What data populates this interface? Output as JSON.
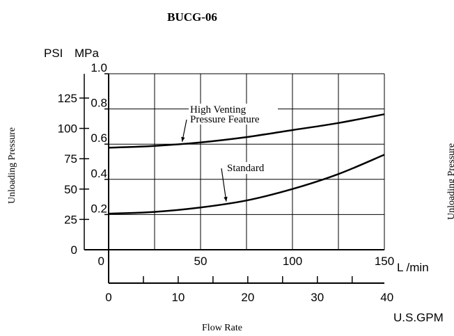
{
  "chart_data": {
    "type": "line",
    "title": "BUCG-06",
    "xlabel": "Flow Rate",
    "ylabel": "Unloading Pressure",
    "y_units": {
      "left": "PSI",
      "right": "MPa"
    },
    "x_units": {
      "primary": "L /min",
      "secondary": "U.S.GPM"
    },
    "xlim": [
      0,
      150
    ],
    "ylim_mpa": [
      0,
      1.0
    ],
    "ylim_psi": [
      0,
      145
    ],
    "x_ticks_lmin": [
      {
        "value": 0,
        "label": "0"
      },
      {
        "value": 50,
        "label": "50"
      },
      {
        "value": 100,
        "label": "100"
      },
      {
        "value": 150,
        "label": "150"
      }
    ],
    "x_ticks_gpm": [
      {
        "value": 0,
        "label": "0"
      },
      {
        "value": 10,
        "label": "10"
      },
      {
        "value": 20,
        "label": "20"
      },
      {
        "value": 30,
        "label": "30"
      },
      {
        "value": 40,
        "label": "40"
      }
    ],
    "gpm_per_lmin": 0.2642,
    "y_ticks_mpa": [
      {
        "value": 0.2,
        "label": "0.2"
      },
      {
        "value": 0.4,
        "label": "0.4"
      },
      {
        "value": 0.6,
        "label": "0.6"
      },
      {
        "value": 0.8,
        "label": "0.8"
      },
      {
        "value": 1.0,
        "label": "1.0"
      }
    ],
    "y_ticks_psi": [
      {
        "value": 0,
        "label": "0"
      },
      {
        "value": 25,
        "label": "25"
      },
      {
        "value": 50,
        "label": "50"
      },
      {
        "value": 75,
        "label": "75"
      },
      {
        "value": 100,
        "label": "100"
      },
      {
        "value": 125,
        "label": "125"
      }
    ],
    "psi_per_mpa": 145.04,
    "grid_x_lmin": [
      0,
      25,
      50,
      75,
      100,
      125,
      150
    ],
    "grid_y_mpa": [
      0.2,
      0.4,
      0.6,
      0.8,
      1.0
    ],
    "series": [
      {
        "name": "High Venting Pressure Feature",
        "x": [
          0,
          25,
          50,
          75,
          100,
          125,
          150
        ],
        "y": [
          0.58,
          0.59,
          0.61,
          0.64,
          0.68,
          0.72,
          0.77
        ]
      },
      {
        "name": "Standard",
        "x": [
          0,
          25,
          50,
          75,
          100,
          125,
          150
        ],
        "y": [
          0.205,
          0.215,
          0.24,
          0.28,
          0.345,
          0.43,
          0.54
        ]
      }
    ],
    "annotations": [
      {
        "series": 0,
        "lines": [
          "High Venting",
          "Pressure Feature"
        ],
        "points_to_x": 40
      },
      {
        "series": 1,
        "lines": [
          "Standard"
        ],
        "points_to_x": 64
      }
    ],
    "right_cutoff_label": "Unloading Pressure"
  }
}
